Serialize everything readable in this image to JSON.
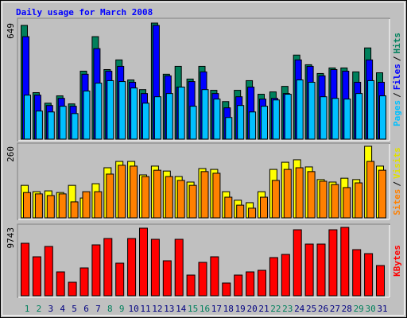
{
  "chart_data": [
    {
      "type": "bar",
      "title": "Daily usage for March 2008",
      "ylim": [
        0,
        649
      ],
      "yticks": [
        649
      ],
      "legend_separator": "/",
      "series": [
        {
          "name": "Pages",
          "color": "#00c0ff",
          "values": [
            246,
            157,
            152,
            184,
            143,
            269,
            313,
            327,
            322,
            286,
            201,
            237,
            255,
            291,
            184,
            277,
            224,
            121,
            188,
            152,
            184,
            219,
            251,
            331,
            318,
            237,
            228,
            224,
            255,
            327,
            242
          ]
        },
        {
          "name": "Files",
          "color": "#0000ff",
          "values": [
            573,
            246,
            188,
            228,
            184,
            363,
            506,
            380,
            407,
            318,
            255,
            636,
            354,
            291,
            322,
            376,
            255,
            175,
            237,
            291,
            224,
            228,
            255,
            443,
            407,
            354,
            389,
            380,
            318,
            443,
            318
          ]
        },
        {
          "name": "Hits",
          "color": "#00805c",
          "values": [
            636,
            260,
            201,
            242,
            197,
            380,
            573,
            389,
            443,
            331,
            277,
            649,
            363,
            407,
            336,
            407,
            273,
            210,
            273,
            327,
            251,
            264,
            295,
            470,
            416,
            367,
            398,
            398,
            376,
            510,
            371
          ]
        }
      ]
    },
    {
      "type": "bar",
      "ylim": [
        0,
        260
      ],
      "yticks": [
        260
      ],
      "legend_separator": "/",
      "series": [
        {
          "name": "Sites",
          "color": "#ff8000",
          "values": [
            92,
            87,
            81,
            87,
            58,
            95,
            95,
            159,
            191,
            188,
            150,
            173,
            150,
            136,
            118,
            168,
            162,
            75,
            46,
            35,
            75,
            136,
            176,
            182,
            168,
            133,
            121,
            110,
            127,
            205,
            173
          ]
        },
        {
          "name": "Visits",
          "color": "#ffff00",
          "values": [
            118,
            95,
            98,
            92,
            118,
            72,
            124,
            182,
            205,
            205,
            156,
            188,
            170,
            150,
            130,
            179,
            176,
            95,
            64,
            55,
            95,
            176,
            202,
            211,
            185,
            139,
            130,
            144,
            139,
            260,
            188
          ]
        }
      ]
    },
    {
      "type": "bar",
      "ylim": [
        0,
        9743
      ],
      "yticks": [
        9743
      ],
      "categories": [
        "1",
        "2",
        "3",
        "4",
        "5",
        "6",
        "7",
        "8",
        "9",
        "10",
        "11",
        "12",
        "13",
        "14",
        "15",
        "16",
        "17",
        "18",
        "19",
        "20",
        "21",
        "22",
        "23",
        "24",
        "25",
        "26",
        "27",
        "28",
        "29",
        "30",
        "31"
      ],
      "category_colors": [
        "#00805c",
        "#00805c",
        "#000080",
        "#000080",
        "#000080",
        "#000080",
        "#000080",
        "#00805c",
        "#00805c",
        "#000080",
        "#000080",
        "#000080",
        "#000080",
        "#000080",
        "#00805c",
        "#00805c",
        "#000080",
        "#000080",
        "#000080",
        "#000080",
        "#000080",
        "#00805c",
        "#00805c",
        "#000080",
        "#000080",
        "#000080",
        "#000080",
        "#000080",
        "#00805c",
        "#00805c",
        "#000080"
      ],
      "series": [
        {
          "name": "KBytes",
          "color": "#ff0000",
          "values": [
            7477,
            5551,
            7024,
            3399,
            1926,
            3965,
            7251,
            8157,
            4645,
            8157,
            9630,
            8044,
            4985,
            8044,
            2946,
            4758,
            5551,
            1813,
            2946,
            3399,
            3625,
            5438,
            5891,
            9403,
            7364,
            7364,
            9403,
            9743,
            6571,
            6004,
            4305
          ]
        }
      ]
    }
  ]
}
